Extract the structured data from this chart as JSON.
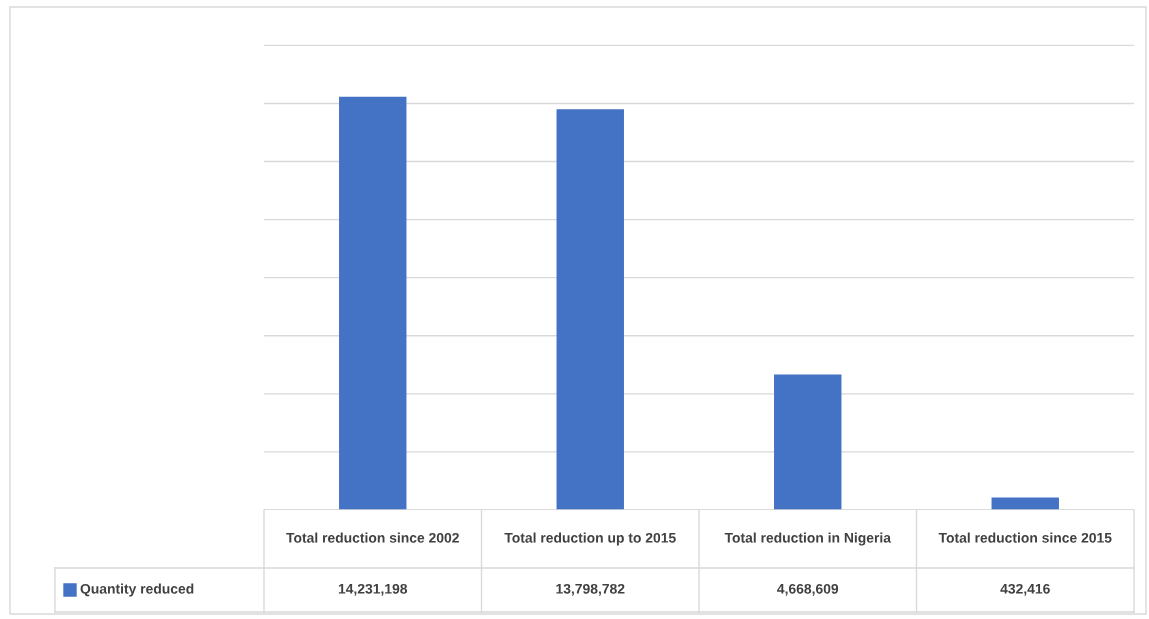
{
  "chart_data": {
    "type": "bar",
    "categories": [
      "Total reduction since 2002",
      "Total reduction up to 2015",
      "Total reduction in Nigeria",
      "Total reduction since 2015"
    ],
    "series": [
      {
        "name": "Quantity reduced",
        "color": "#4472c4",
        "values": [
          14231198,
          13798782,
          4668609,
          432416
        ],
        "value_labels": [
          "14,231,198",
          "13,798,782",
          "4,668,609",
          "432,416"
        ]
      }
    ],
    "grid": "y",
    "tick_labels": "x"
  }
}
